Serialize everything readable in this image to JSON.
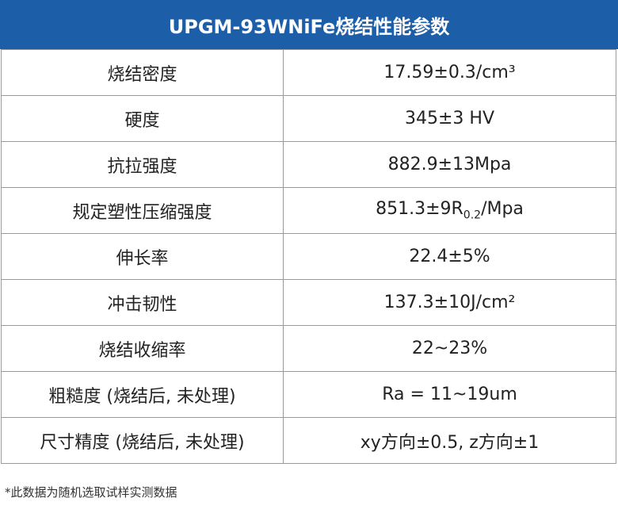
{
  "header": {
    "title": "UPGM-93WNiFe烧结性能参数"
  },
  "table": {
    "rows": [
      {
        "property": "烧结密度",
        "value": "17.59±0.3/cm³"
      },
      {
        "property": "硬度",
        "value": "345±3 HV"
      },
      {
        "property": "抗拉强度",
        "value": "882.9±13Mpa"
      },
      {
        "property": "规定塑性压缩强度",
        "value": "851.3±9R",
        "value_sub": "0.2",
        "value_after": "/Mpa"
      },
      {
        "property": "伸长率",
        "value": "22.4±5%"
      },
      {
        "property": "冲击韧性",
        "value": "137.3±10J/cm²"
      },
      {
        "property": "烧结收缩率",
        "value": "22~23%"
      },
      {
        "property": "粗糙度 (烧结后, 未处理)",
        "value": "Ra = 11~19um"
      },
      {
        "property": "尺寸精度 (烧结后, 未处理)",
        "value": "xy方向±0.5, z方向±1"
      }
    ]
  },
  "footnote": "*此数据为随机选取试样实测数据"
}
